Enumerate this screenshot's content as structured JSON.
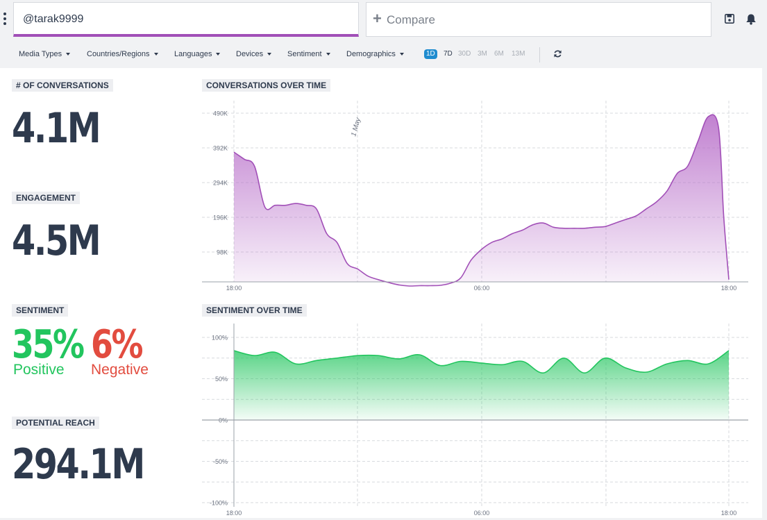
{
  "search": {
    "value": "@tarak9999"
  },
  "compare": {
    "label": "Compare"
  },
  "filters": [
    "Media Types",
    "Countries/Regions",
    "Languages",
    "Devices",
    "Sentiment",
    "Demographics"
  ],
  "ranges": [
    "1D",
    "7D",
    "30D",
    "3M",
    "6M",
    "13M"
  ],
  "active_range": "1D",
  "metrics": {
    "conversations": {
      "label": "# OF CONVERSATIONS",
      "value": "4.1M"
    },
    "engagement": {
      "label": "ENGAGEMENT",
      "value": "4.5M"
    },
    "sentiment": {
      "label": "SENTIMENT",
      "positive": "35%",
      "positive_label": "Positive",
      "negative": "6%",
      "negative_label": "Negative"
    },
    "reach": {
      "label": "POTENTIAL REACH",
      "value": "294.1M"
    }
  },
  "colors": {
    "accent": "#a14fb7",
    "positive": "#22c55e",
    "negative": "#e24c3f",
    "active_range": "#1f8ccf"
  },
  "chart_data": [
    {
      "type": "area",
      "title": "CONVERSATIONS OVER TIME",
      "annotation": "1 May",
      "x_tick_labels": [
        "18:00",
        "06:00",
        "18:00"
      ],
      "y_tick_labels": [
        "98K",
        "196K",
        "294K",
        "392K",
        "490K"
      ],
      "ylim": [
        0,
        490000
      ],
      "x_hours": [
        0,
        0.5,
        1,
        1.5,
        2,
        2.5,
        3,
        3.5,
        4,
        4.5,
        5,
        5.5,
        6,
        6.5,
        7,
        7.5,
        8,
        8.5,
        9,
        9.5,
        10,
        10.5,
        11,
        11.5,
        12,
        12.5,
        13,
        13.5,
        14,
        14.5,
        15,
        15.5,
        16,
        16.5,
        17,
        17.5,
        18,
        18.5,
        19,
        19.5,
        20,
        20.5,
        21,
        21.5,
        22,
        22.5,
        23,
        23.5,
        23.75,
        24
      ],
      "values": [
        380000,
        360000,
        340000,
        225000,
        230000,
        230000,
        235000,
        230000,
        220000,
        150000,
        125000,
        65000,
        50000,
        30000,
        20000,
        12000,
        5000,
        2000,
        3000,
        3000,
        4000,
        10000,
        25000,
        75000,
        105000,
        125000,
        135000,
        150000,
        160000,
        175000,
        180000,
        168000,
        165000,
        165000,
        165000,
        168000,
        170000,
        180000,
        190000,
        200000,
        220000,
        240000,
        270000,
        320000,
        340000,
        410000,
        480000,
        450000,
        200000,
        20000
      ]
    },
    {
      "type": "area",
      "title": "SENTIMENT OVER TIME",
      "x_tick_labels": [
        "18:00",
        "06:00",
        "18:00"
      ],
      "y_tick_labels": [
        "100%",
        "50%",
        "0%",
        "-50%",
        "-100%"
      ],
      "ylim": [
        -100,
        100
      ],
      "x_hours": [
        0,
        1,
        2,
        3,
        4,
        5,
        6,
        7,
        8,
        9,
        10,
        11,
        12,
        13,
        14,
        15,
        16,
        17,
        18,
        19,
        20,
        21,
        22,
        23,
        24
      ],
      "values": [
        84,
        78,
        82,
        68,
        72,
        75,
        78,
        78,
        74,
        79,
        66,
        71,
        69,
        67,
        71,
        57,
        75,
        57,
        75,
        63,
        58,
        68,
        72,
        68,
        84
      ]
    }
  ]
}
